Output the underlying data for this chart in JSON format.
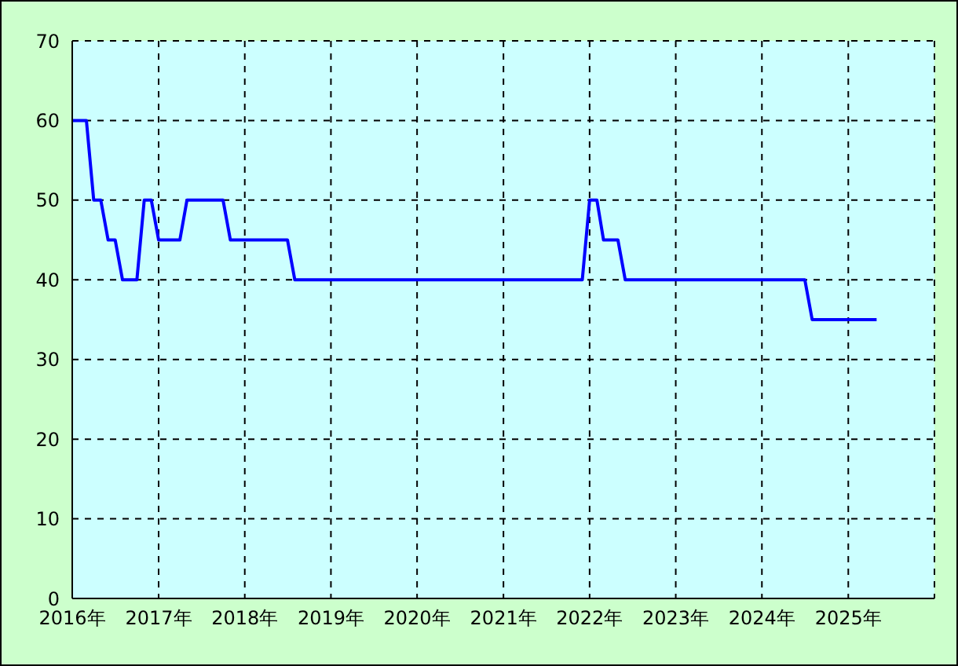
{
  "chart_data": {
    "type": "line",
    "color": "#0000ff",
    "grid": true,
    "xlim": [
      "2016-01",
      "2026-01"
    ],
    "xticks": [
      {
        "value": "2016",
        "label": "2016年"
      },
      {
        "value": "2017",
        "label": "2017年"
      },
      {
        "value": "2018",
        "label": "2018年"
      },
      {
        "value": "2019",
        "label": "2019年"
      },
      {
        "value": "2020",
        "label": "2020年"
      },
      {
        "value": "2021",
        "label": "2021年"
      },
      {
        "value": "2022",
        "label": "2022年"
      },
      {
        "value": "2023",
        "label": "2023年"
      },
      {
        "value": "2024",
        "label": "2024年"
      },
      {
        "value": "2025",
        "label": "2025年"
      }
    ],
    "ylim": [
      0,
      70
    ],
    "yticks": [
      0,
      10,
      20,
      30,
      40,
      50,
      60,
      70
    ],
    "x": [
      "2016-01",
      "2016-03",
      "2016-04",
      "2016-05",
      "2016-06",
      "2016-07",
      "2016-08",
      "2016-10",
      "2016-11",
      "2016-12",
      "2017-01",
      "2017-04",
      "2017-05",
      "2017-10",
      "2017-11",
      "2018-07",
      "2018-08",
      "2021-12",
      "2022-01",
      "2022-02",
      "2022-03",
      "2022-05",
      "2022-06",
      "2024-07",
      "2024-08",
      "2025-05"
    ],
    "values": [
      60,
      60,
      50,
      50,
      45,
      45,
      40,
      40,
      50,
      50,
      45,
      45,
      50,
      50,
      45,
      45,
      40,
      40,
      50,
      50,
      45,
      45,
      40,
      40,
      35,
      35
    ]
  }
}
